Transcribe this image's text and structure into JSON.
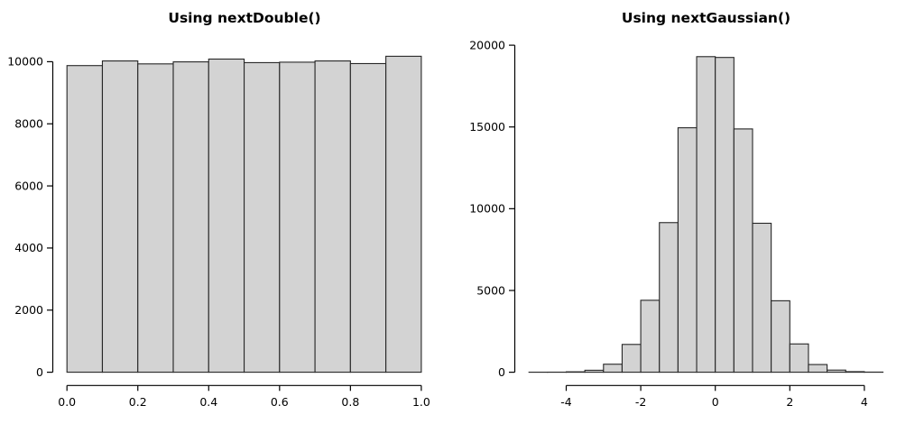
{
  "figure": {
    "background": "#ffffff",
    "text_color": "#000000"
  },
  "chart_data": [
    {
      "type": "bar",
      "subtype": "histogram",
      "title": "Using nextDouble()",
      "xlabel": "",
      "ylabel": "",
      "bin_start": 0.0,
      "bin_width": 0.1,
      "counts": [
        9875,
        10025,
        9930,
        9995,
        10085,
        9970,
        9985,
        10025,
        9940,
        10175
      ],
      "x_ticks": {
        "values": [
          0.0,
          0.2,
          0.4,
          0.6,
          0.8,
          1.0
        ],
        "labels": [
          "0.0",
          "0.2",
          "0.4",
          "0.6",
          "0.8",
          "1.0"
        ]
      },
      "y_ticks": {
        "values": [
          0,
          2000,
          4000,
          6000,
          8000,
          10000
        ],
        "labels": [
          "0",
          "2000",
          "4000",
          "6000",
          "8000",
          "10000"
        ]
      },
      "xlim": [
        0.0,
        1.0
      ],
      "ylim": [
        0,
        10000
      ],
      "grid": "off",
      "legend": "none",
      "bar_fill": "#d3d3d3",
      "bar_border": "#262626"
    },
    {
      "type": "bar",
      "subtype": "histogram",
      "title": "Using nextGaussian()",
      "xlabel": "",
      "ylabel": "",
      "bin_start": -5.0,
      "bin_width": 0.5,
      "counts": [
        2,
        4,
        25,
        120,
        490,
        1700,
        4400,
        9150,
        14950,
        19300,
        19250,
        14880,
        9110,
        4370,
        1730,
        470,
        130,
        35,
        8
      ],
      "x_ticks": {
        "values": [
          -4,
          -2,
          0,
          2,
          4
        ],
        "labels": [
          "-4",
          "-2",
          "0",
          "2",
          "4"
        ]
      },
      "y_ticks": {
        "values": [
          0,
          5000,
          10000,
          15000,
          20000
        ],
        "labels": [
          "0",
          "5000",
          "10000",
          "15000",
          "20000"
        ]
      },
      "xlim": [
        -5.0,
        4.5
      ],
      "ylim": [
        0,
        20000
      ],
      "grid": "off",
      "legend": "none",
      "bar_fill": "#d3d3d3",
      "bar_border": "#262626"
    }
  ]
}
